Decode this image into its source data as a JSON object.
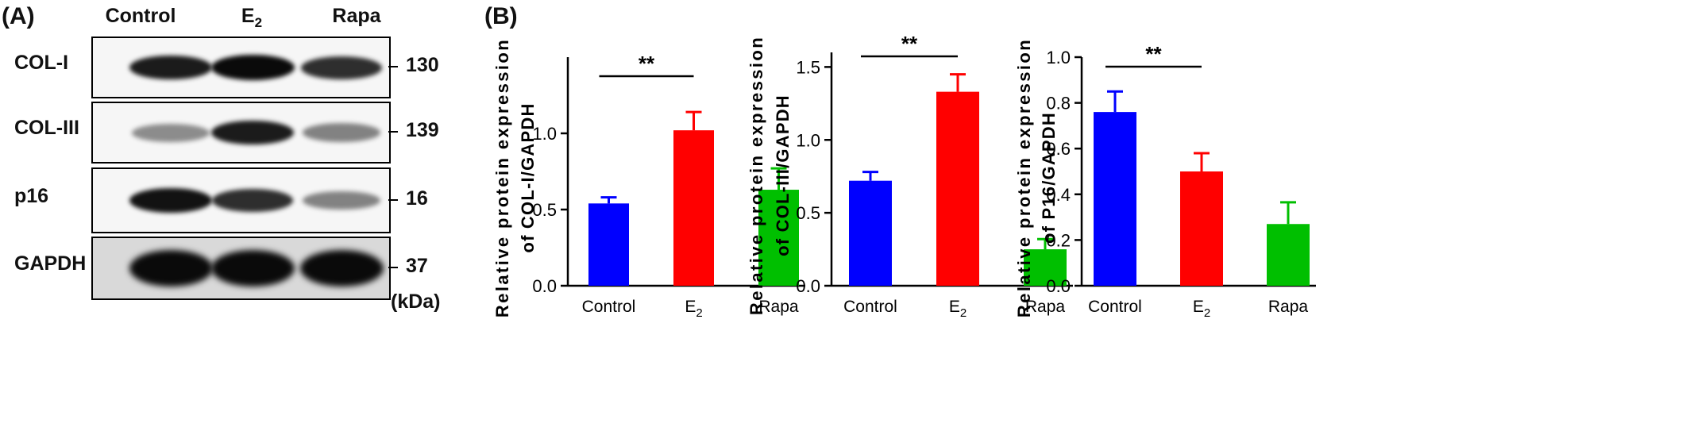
{
  "panel_a": {
    "label": "(A)",
    "lanes": [
      "Control",
      "E",
      "Rapa"
    ],
    "lane_subscripts": [
      "",
      "2",
      ""
    ],
    "kda_label": "(kDa)",
    "blots": [
      {
        "protein": "COL-I",
        "mw": "130",
        "intensities": [
          0.85,
          1.0,
          0.75
        ]
      },
      {
        "protein": "COL-III",
        "mw": "139",
        "intensities": [
          0.25,
          0.85,
          0.3
        ]
      },
      {
        "protein": "p16",
        "mw": "16",
        "intensities": [
          0.9,
          0.75,
          0.3
        ]
      },
      {
        "protein": "GAPDH",
        "mw": "37",
        "intensities": [
          1.0,
          1.0,
          1.0
        ]
      }
    ]
  },
  "panel_b": {
    "label": "(B)"
  },
  "colors": {
    "Control": "#0000ff",
    "E2": "#ff0000",
    "Rapa": "#00bf00"
  },
  "chart_data": [
    {
      "type": "bar",
      "categories": [
        "Control",
        "E2",
        "Rapa"
      ],
      "category_labels": [
        [
          "Control",
          ""
        ],
        [
          "E",
          "2"
        ],
        [
          "Rapa",
          ""
        ]
      ],
      "values": [
        0.54,
        1.02,
        0.63
      ],
      "errors": [
        0.04,
        0.12,
        0.14
      ],
      "ylabel_lines": [
        "Relative protein expression",
        "of COL-I/GAPDH"
      ],
      "ylim": [
        0,
        1.5
      ],
      "yticks": [
        "0.0",
        "0.5",
        "1.0"
      ],
      "ytick_values": [
        0,
        0.5,
        1.0
      ],
      "significance": {
        "label": "**",
        "from": 0,
        "to": 1,
        "y": 1.2
      }
    },
    {
      "type": "bar",
      "categories": [
        "Control",
        "E2",
        "Rapa"
      ],
      "category_labels": [
        [
          "Control",
          ""
        ],
        [
          "E",
          "2"
        ],
        [
          "Rapa",
          ""
        ]
      ],
      "values": [
        0.72,
        1.33,
        0.25
      ],
      "errors": [
        0.06,
        0.12,
        0.07
      ],
      "ylabel_lines": [
        "Relative protein expression",
        "of COL-III/GAPDH"
      ],
      "ylim": [
        0,
        1.6
      ],
      "yticks": [
        "0.0",
        "0.5",
        "1.0",
        "1.5"
      ],
      "ytick_values": [
        0,
        0.5,
        1.0,
        1.5
      ],
      "significance": {
        "label": "**",
        "from": 0,
        "to": 1,
        "y": 1.57
      }
    },
    {
      "type": "bar",
      "categories": [
        "Control",
        "E2",
        "Rapa"
      ],
      "category_labels": [
        [
          "Control",
          ""
        ],
        [
          "E",
          "2"
        ],
        [
          "Rapa",
          ""
        ]
      ],
      "values": [
        0.76,
        0.5,
        0.27
      ],
      "errors": [
        0.09,
        0.08,
        0.095
      ],
      "ylabel_lines": [
        "Relative protein expression",
        "of P16/GAPDH"
      ],
      "ylim": [
        0,
        1.0
      ],
      "yticks": [
        "0.0",
        "0.2",
        "0.4",
        "0.6",
        "0.8",
        "1.0"
      ],
      "ytick_values": [
        0,
        0.2,
        0.4,
        0.6,
        0.8,
        1.0
      ],
      "significance": {
        "label": "**",
        "from": 0,
        "to": 1,
        "y": 0.93
      }
    }
  ]
}
